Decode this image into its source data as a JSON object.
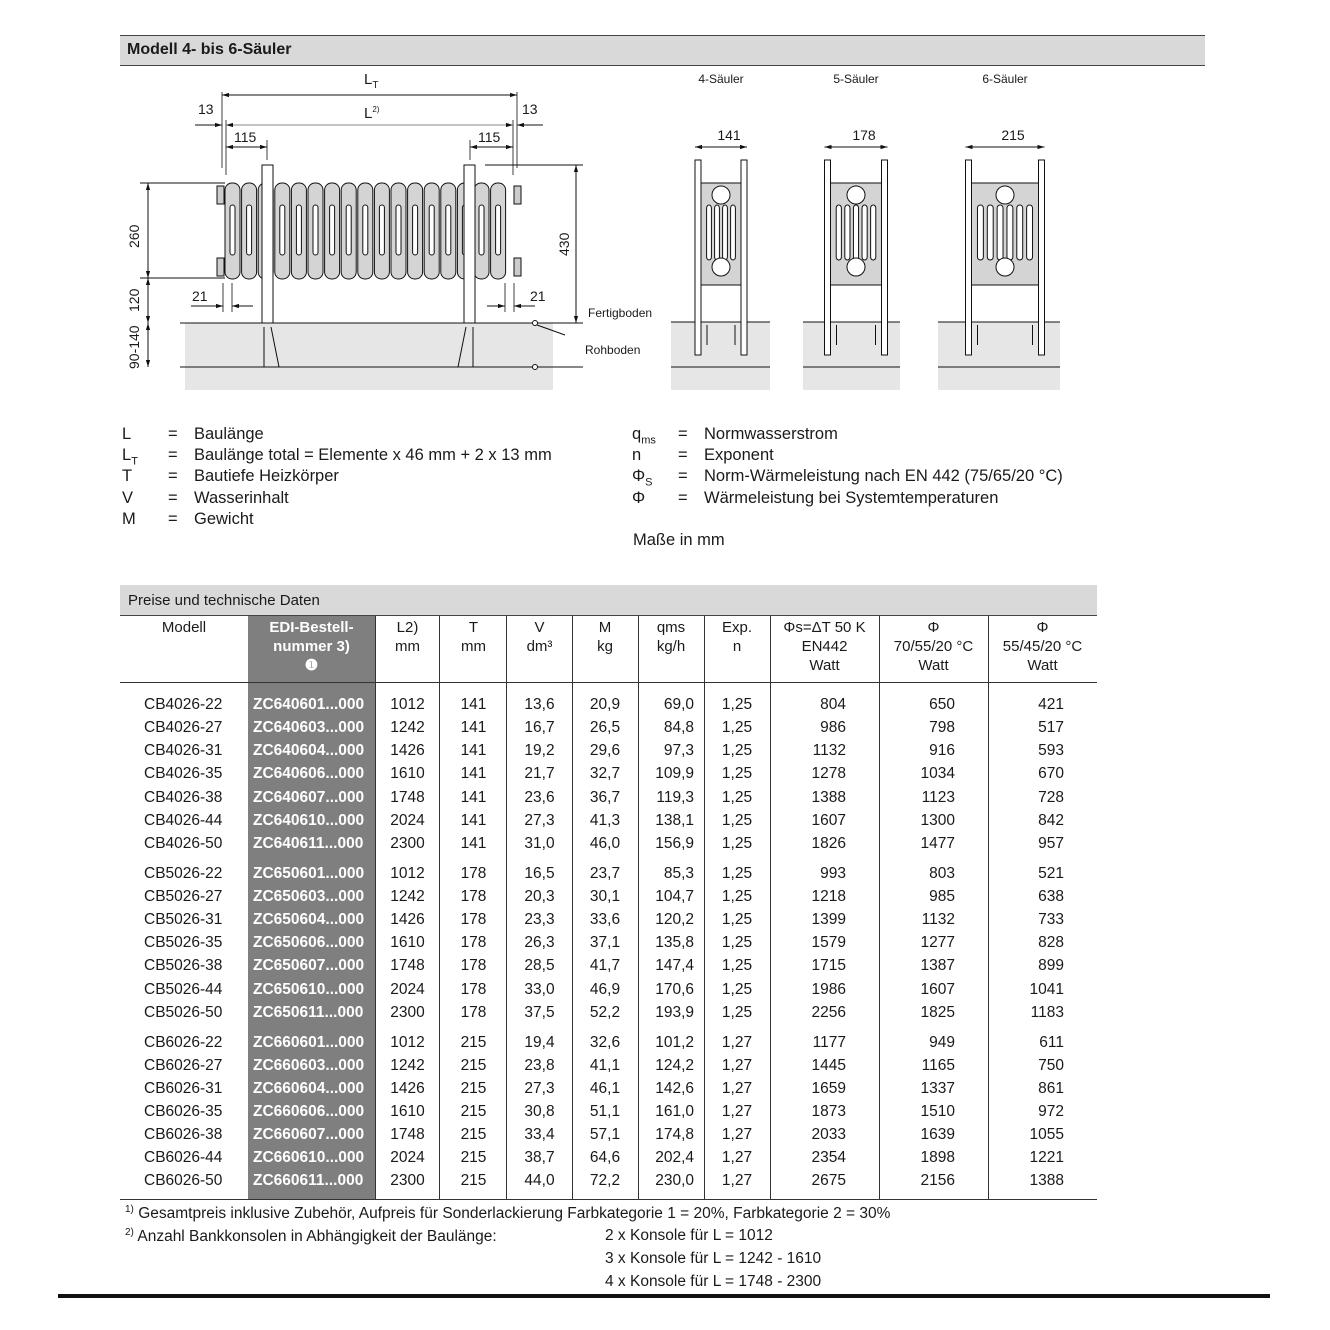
{
  "section_title": "Modell 4- bis 6-Säuler",
  "drawing": {
    "dim_LT": "L",
    "dim_LT_sub": "T",
    "dim_L": "L",
    "dim_L_sup": "2)",
    "dim_13_left": "13",
    "dim_13_right": "13",
    "dim_115_left": "115",
    "dim_115_right": "115",
    "dim_260": "260",
    "dim_120": "120",
    "dim_90_140": "90-140",
    "dim_430": "430",
    "dim_21_left": "21",
    "dim_21_right": "21",
    "label_fertigboden": "Fertigboden",
    "label_rohboden": "Rohboden",
    "views": [
      {
        "label": "4-Säuler",
        "depth": "141",
        "columns": 4
      },
      {
        "label": "5-Säuler",
        "depth": "178",
        "columns": 5
      },
      {
        "label": "6-Säuler",
        "depth": "215",
        "columns": 6
      }
    ]
  },
  "legend_left": [
    {
      "sym": "L",
      "sub": "",
      "eq": "=",
      "text": "Baulänge"
    },
    {
      "sym": "L",
      "sub": "T",
      "eq": "=",
      "text": "Baulänge total = Elemente x 46 mm + 2 x 13 mm"
    },
    {
      "sym": "T",
      "sub": "",
      "eq": "=",
      "text": "Bautiefe Heizkörper"
    },
    {
      "sym": "V",
      "sub": "",
      "eq": "=",
      "text": "Wasserinhalt"
    },
    {
      "sym": "M",
      "sub": "",
      "eq": "=",
      "text": "Gewicht"
    }
  ],
  "legend_right": [
    {
      "sym": "q",
      "sub": "ms",
      "eq": "=",
      "text": "Normwasserstrom"
    },
    {
      "sym": "n",
      "sub": "",
      "eq": "=",
      "text": "Exponent"
    },
    {
      "sym": "Φ",
      "sub": "S",
      "eq": "=",
      "text": "Norm-Wärmeleistung nach EN 442 (75/65/20 °C)"
    },
    {
      "sym": "Φ",
      "sub": "",
      "eq": "=",
      "text": "Wärmeleistung bei Systemtemperaturen"
    }
  ],
  "units_note": "Maße in mm",
  "table": {
    "title": "Preise und technische Daten",
    "headers": [
      {
        "l1": "Modell",
        "l2": "",
        "l3": ""
      },
      {
        "l1": "EDI-Bestell-",
        "l2": "nummer 3)",
        "l3": "❶"
      },
      {
        "l1": "L2)",
        "l2": "",
        "l3": "mm"
      },
      {
        "l1": "T",
        "l2": "",
        "l3": "mm"
      },
      {
        "l1": "V",
        "l2": "",
        "l3": "dm³"
      },
      {
        "l1": "M",
        "l2": "",
        "l3": "kg"
      },
      {
        "l1": "qms",
        "l2": "",
        "l3": "kg/h"
      },
      {
        "l1": "Exp.",
        "l2": "",
        "l3": "n"
      },
      {
        "l1": "Φs=ΔT 50 K",
        "l2": "EN442",
        "l3": "Watt"
      },
      {
        "l1": "Φ",
        "l2": "70/55/20 °C",
        "l3": "Watt"
      },
      {
        "l1": "Φ",
        "l2": "55/45/20 °C",
        "l3": "Watt"
      }
    ],
    "groups": [
      [
        [
          "CB4026-22",
          "ZC640601...000",
          "1012",
          "141",
          "13,6",
          "20,9",
          "69,0",
          "1,25",
          "804",
          "650",
          "421"
        ],
        [
          "CB4026-27",
          "ZC640603...000",
          "1242",
          "141",
          "16,7",
          "26,5",
          "84,8",
          "1,25",
          "986",
          "798",
          "517"
        ],
        [
          "CB4026-31",
          "ZC640604...000",
          "1426",
          "141",
          "19,2",
          "29,6",
          "97,3",
          "1,25",
          "1132",
          "916",
          "593"
        ],
        [
          "CB4026-35",
          "ZC640606...000",
          "1610",
          "141",
          "21,7",
          "32,7",
          "109,9",
          "1,25",
          "1278",
          "1034",
          "670"
        ],
        [
          "CB4026-38",
          "ZC640607...000",
          "1748",
          "141",
          "23,6",
          "36,7",
          "119,3",
          "1,25",
          "1388",
          "1123",
          "728"
        ],
        [
          "CB4026-44",
          "ZC640610...000",
          "2024",
          "141",
          "27,3",
          "41,3",
          "138,1",
          "1,25",
          "1607",
          "1300",
          "842"
        ],
        [
          "CB4026-50",
          "ZC640611...000",
          "2300",
          "141",
          "31,0",
          "46,0",
          "156,9",
          "1,25",
          "1826",
          "1477",
          "957"
        ]
      ],
      [
        [
          "CB5026-22",
          "ZC650601...000",
          "1012",
          "178",
          "16,5",
          "23,7",
          "85,3",
          "1,25",
          "993",
          "803",
          "521"
        ],
        [
          "CB5026-27",
          "ZC650603...000",
          "1242",
          "178",
          "20,3",
          "30,1",
          "104,7",
          "1,25",
          "1218",
          "985",
          "638"
        ],
        [
          "CB5026-31",
          "ZC650604...000",
          "1426",
          "178",
          "23,3",
          "33,6",
          "120,2",
          "1,25",
          "1399",
          "1132",
          "733"
        ],
        [
          "CB5026-35",
          "ZC650606...000",
          "1610",
          "178",
          "26,3",
          "37,1",
          "135,8",
          "1,25",
          "1579",
          "1277",
          "828"
        ],
        [
          "CB5026-38",
          "ZC650607...000",
          "1748",
          "178",
          "28,5",
          "41,7",
          "147,4",
          "1,25",
          "1715",
          "1387",
          "899"
        ],
        [
          "CB5026-44",
          "ZC650610...000",
          "2024",
          "178",
          "33,0",
          "46,9",
          "170,6",
          "1,25",
          "1986",
          "1607",
          "1041"
        ],
        [
          "CB5026-50",
          "ZC650611...000",
          "2300",
          "178",
          "37,5",
          "52,2",
          "193,9",
          "1,25",
          "2256",
          "1825",
          "1183"
        ]
      ],
      [
        [
          "CB6026-22",
          "ZC660601...000",
          "1012",
          "215",
          "19,4",
          "32,6",
          "101,2",
          "1,27",
          "1177",
          "949",
          "611"
        ],
        [
          "CB6026-27",
          "ZC660603...000",
          "1242",
          "215",
          "23,8",
          "41,1",
          "124,2",
          "1,27",
          "1445",
          "1165",
          "750"
        ],
        [
          "CB6026-31",
          "ZC660604...000",
          "1426",
          "215",
          "27,3",
          "46,1",
          "142,6",
          "1,27",
          "1659",
          "1337",
          "861"
        ],
        [
          "CB6026-35",
          "ZC660606...000",
          "1610",
          "215",
          "30,8",
          "51,1",
          "161,0",
          "1,27",
          "1873",
          "1510",
          "972"
        ],
        [
          "CB6026-38",
          "ZC660607...000",
          "1748",
          "215",
          "33,4",
          "57,1",
          "174,8",
          "1,27",
          "2033",
          "1639",
          "1055"
        ],
        [
          "CB6026-44",
          "ZC660610...000",
          "2024",
          "215",
          "38,7",
          "64,6",
          "202,4",
          "1,27",
          "2354",
          "1898",
          "1221"
        ],
        [
          "CB6026-50",
          "ZC660611...000",
          "2300",
          "215",
          "44,0",
          "72,2",
          "230,0",
          "1,27",
          "2675",
          "2156",
          "1388"
        ]
      ]
    ]
  },
  "footnotes": {
    "fn1_mark": "1)",
    "fn1": "Gesamtpreis inklusive Zubehör, Aufpreis für Sonderlackierung Farbkategorie 1 = 20%, Farbkategorie 2 = 30%",
    "fn2_mark": "2)",
    "fn2": "Anzahl Bankkonsolen in Abhängigkeit der Baulänge:",
    "fn2_items": [
      "2 x Konsole für L = 1012",
      "3 x Konsole für L = 1242 - 1610",
      "4 x Konsole für L = 1748 - 2300"
    ]
  },
  "colors": {
    "header_bar": "#d9d9d9",
    "edi_column": "#7f7f7f",
    "floor": "#e6e6e6",
    "radiator": "#d4d4d4"
  }
}
